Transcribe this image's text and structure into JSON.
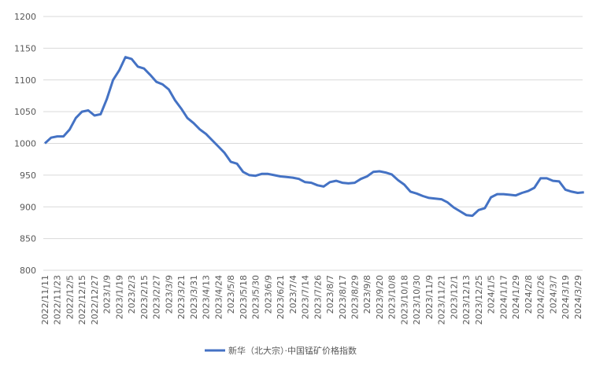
{
  "chart_data": {
    "type": "line",
    "categories": [
      "2022/11/11",
      null,
      "2022/11/23",
      null,
      "2022/12/5",
      null,
      "2022/12/15",
      null,
      "2022/12/27",
      null,
      "2023/1/9",
      null,
      "2023/1/19",
      null,
      "2023/2/3",
      null,
      "2023/2/15",
      null,
      "2023/2/27",
      null,
      "2023/3/9",
      null,
      "2023/3/21",
      null,
      "2023/3/31",
      null,
      "2023/4/13",
      null,
      "2023/4/24",
      null,
      "2023/5/8",
      null,
      "2023/5/18",
      null,
      "2023/5/30",
      null,
      "2023/6/9",
      null,
      "2023/6/21",
      null,
      "2023/7/4",
      null,
      "2023/7/14",
      null,
      "2023/7/26",
      null,
      "2023/8/7",
      null,
      "2023/8/17",
      null,
      "2023/8/29",
      null,
      "2023/9/8",
      null,
      "2023/9/20",
      null,
      "2023/10/8",
      null,
      "2023/10/18",
      null,
      "2023/10/30",
      null,
      "2023/11/9",
      null,
      "2023/11/21",
      null,
      "2023/12/1",
      null,
      "2023/12/13",
      null,
      "2023/12/25",
      null,
      "2024/1/5",
      null,
      "2024/1/17",
      null,
      "2024/1/29",
      null,
      "2024/2/8",
      null,
      "2024/2/26",
      null,
      "2024/3/7",
      null,
      "2024/3/19",
      null,
      "2024/3/29",
      null
    ],
    "series": [
      {
        "name": "新华（北大宗）·中国锰矿价格指数",
        "color": "#4472c4",
        "values": [
          1000,
          1009,
          1011,
          1011,
          1022,
          1040,
          1050,
          1052,
          1044,
          1046,
          1070,
          1100,
          1115,
          1136,
          1133,
          1121,
          1118,
          1108,
          1097,
          1093,
          1085,
          1068,
          1055,
          1040,
          1032,
          1022,
          1015,
          1005,
          995,
          985,
          971,
          968,
          955,
          950,
          949,
          952,
          952,
          950,
          948,
          947,
          946,
          944,
          939,
          938,
          934,
          932,
          939,
          941,
          938,
          937,
          938,
          944,
          948,
          955,
          956,
          954,
          951,
          942,
          935,
          924,
          921,
          917,
          914,
          913,
          912,
          907,
          899,
          893,
          887,
          886,
          895,
          898,
          915,
          920,
          920,
          919,
          918,
          922,
          925,
          930,
          945,
          945,
          941,
          940,
          927,
          924,
          922,
          923
        ]
      }
    ],
    "ylim": [
      800,
      1200
    ],
    "yticks": [
      800,
      850,
      900,
      950,
      1000,
      1050,
      1100,
      1150,
      1200
    ],
    "grid": true,
    "legend": "bottom"
  }
}
